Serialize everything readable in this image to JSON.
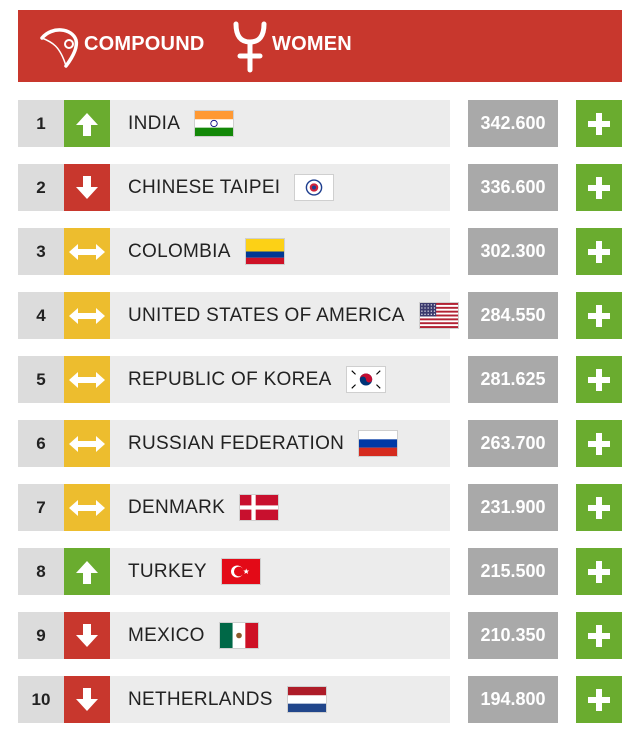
{
  "header": {
    "category_label": "COMPOUND",
    "category_icon": "compound-bow-icon",
    "gender_label": "WOMEN",
    "gender_icon": "female-symbol-icon",
    "background_color": "#c8372d"
  },
  "colors": {
    "trend_up": "#6aac2f",
    "trend_down": "#c8372d",
    "trend_same": "#edbd2e",
    "score_bg": "#a9a9a9",
    "expand_button": "#6aac2f"
  },
  "rankings": [
    {
      "rank": "1",
      "trend": "up",
      "trend_icon": "arrow-up-icon",
      "country": "INDIA",
      "flag": "india-flag",
      "score": "342.600"
    },
    {
      "rank": "2",
      "trend": "down",
      "trend_icon": "arrow-down-icon",
      "country": "CHINESE TAIPEI",
      "flag": "chinese-taipei-flag",
      "score": "336.600"
    },
    {
      "rank": "3",
      "trend": "same",
      "trend_icon": "arrow-left-right-icon",
      "country": "COLOMBIA",
      "flag": "colombia-flag",
      "score": "302.300"
    },
    {
      "rank": "4",
      "trend": "same",
      "trend_icon": "arrow-left-right-icon",
      "country": "UNITED STATES OF AMERICA",
      "flag": "usa-flag",
      "score": "284.550"
    },
    {
      "rank": "5",
      "trend": "same",
      "trend_icon": "arrow-left-right-icon",
      "country": "REPUBLIC OF KOREA",
      "flag": "korea-flag",
      "score": "281.625"
    },
    {
      "rank": "6",
      "trend": "same",
      "trend_icon": "arrow-left-right-icon",
      "country": "RUSSIAN FEDERATION",
      "flag": "russia-flag",
      "score": "263.700"
    },
    {
      "rank": "7",
      "trend": "same",
      "trend_icon": "arrow-left-right-icon",
      "country": "DENMARK",
      "flag": "denmark-flag",
      "score": "231.900"
    },
    {
      "rank": "8",
      "trend": "up",
      "trend_icon": "arrow-up-icon",
      "country": "TURKEY",
      "flag": "turkey-flag",
      "score": "215.500"
    },
    {
      "rank": "9",
      "trend": "down",
      "trend_icon": "arrow-down-icon",
      "country": "MEXICO",
      "flag": "mexico-flag",
      "score": "210.350"
    },
    {
      "rank": "10",
      "trend": "down",
      "trend_icon": "arrow-down-icon",
      "country": "NETHERLANDS",
      "flag": "netherlands-flag",
      "score": "194.800"
    }
  ],
  "expand_icon": "plus-icon"
}
